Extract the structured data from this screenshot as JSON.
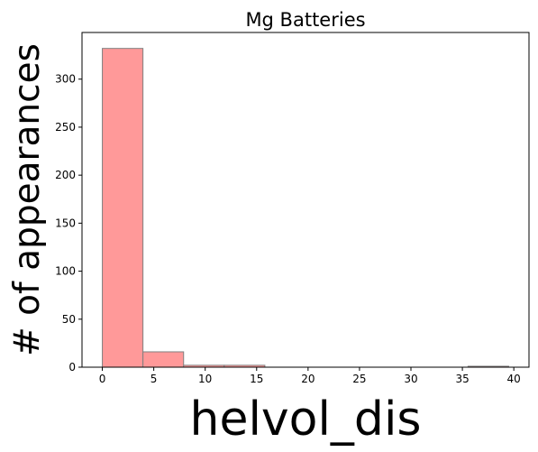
{
  "chart_data": {
    "type": "bar",
    "title": "Mg Batteries",
    "xlabel": "helvol_dis",
    "ylabel": "# of appearances",
    "bins": [
      {
        "x0": 0.0,
        "x1": 3.95,
        "count": 332
      },
      {
        "x0": 3.95,
        "x1": 7.9,
        "count": 16
      },
      {
        "x0": 7.9,
        "x1": 11.85,
        "count": 2
      },
      {
        "x0": 11.85,
        "x1": 15.8,
        "count": 2
      },
      {
        "x0": 15.8,
        "x1": 19.75,
        "count": 0
      },
      {
        "x0": 19.75,
        "x1": 23.7,
        "count": 0
      },
      {
        "x0": 23.7,
        "x1": 27.65,
        "count": 0
      },
      {
        "x0": 27.65,
        "x1": 31.6,
        "count": 0
      },
      {
        "x0": 31.6,
        "x1": 35.55,
        "count": 0
      },
      {
        "x0": 35.55,
        "x1": 39.5,
        "count": 1
      }
    ],
    "xlim": [
      -1.975,
      41.475
    ],
    "ylim": [
      0,
      348.6
    ],
    "xticks": [
      0,
      5,
      10,
      15,
      20,
      25,
      30,
      35,
      40
    ],
    "yticks": [
      0,
      50,
      100,
      150,
      200,
      250,
      300
    ],
    "bar_color": "#ff9999",
    "edge_color": "#808080",
    "grid": false,
    "legend": "none"
  }
}
